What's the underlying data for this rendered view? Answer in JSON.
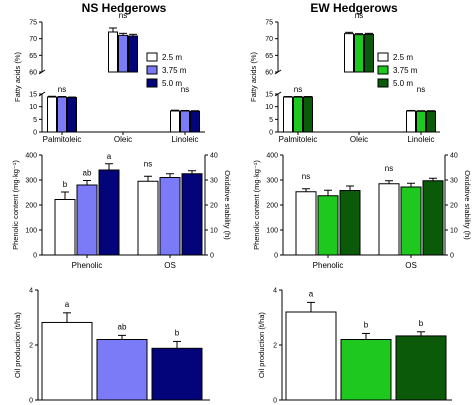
{
  "colors": {
    "white": "#ffffff",
    "ns_light": "#7b7bf7",
    "ns_dark": "#03037a",
    "ew_light": "#1ec81e",
    "ew_dark": "#0a5a0a",
    "axis": "#000000"
  },
  "legend": {
    "labels": [
      "2.5 m",
      "3.75 m",
      "5.0 m"
    ]
  },
  "chart_data": [
    {
      "id": "ns_fatty",
      "type": "bar",
      "title": "NS Hedgerows",
      "ylabel": "Fatty acids (%)",
      "broken_axis": true,
      "yticks_lower": [
        "0",
        "5",
        "10",
        "15"
      ],
      "yticks_upper": [
        "60",
        "65",
        "70",
        "75"
      ],
      "categories": [
        "Palmitoleic",
        "Oleic",
        "Linoleic"
      ],
      "series": [
        {
          "name": "2.5 m",
          "values": [
            13.8,
            72.0,
            8.3
          ],
          "err": [
            0.3,
            1.2,
            0.3
          ]
        },
        {
          "name": "3.75 m",
          "values": [
            13.8,
            71.0,
            8.3
          ],
          "err": [
            0.2,
            0.6,
            0.2
          ]
        },
        {
          "name": "5.0 m",
          "values": [
            13.6,
            70.8,
            8.2
          ],
          "err": [
            0.2,
            0.5,
            0.2
          ]
        }
      ],
      "annotations": [
        "ns",
        "ns",
        "ns"
      ]
    },
    {
      "id": "ew_fatty",
      "type": "bar",
      "title": "EW Hedgerows",
      "ylabel": "Fatty acids (%)",
      "broken_axis": true,
      "yticks_lower": [
        "0",
        "5",
        "10",
        "15"
      ],
      "yticks_upper": [
        "60",
        "65",
        "70",
        "75"
      ],
      "categories": [
        "Palmitoleic",
        "Oleic",
        "Linoleic"
      ],
      "series": [
        {
          "name": "2.5 m",
          "values": [
            13.8,
            71.5,
            8.3
          ],
          "err": [
            0.2,
            0.4,
            0.2
          ]
        },
        {
          "name": "3.75 m",
          "values": [
            13.8,
            71.2,
            8.2
          ],
          "err": [
            0.2,
            0.3,
            0.2
          ]
        },
        {
          "name": "5.0 m",
          "values": [
            13.8,
            71.3,
            8.2
          ],
          "err": [
            0.2,
            0.3,
            0.2
          ]
        }
      ],
      "annotations": [
        "ns",
        "ns",
        "ns"
      ]
    },
    {
      "id": "ns_phenolic",
      "type": "bar",
      "ylabel": "Phenolic content (mg·kg⁻¹)",
      "y2label": "Oxidative stability (h)",
      "ylim": [
        0,
        400
      ],
      "y2lim": [
        0,
        40
      ],
      "yticks": [
        "0",
        "100",
        "200",
        "300",
        "400"
      ],
      "y2ticks": [
        "0",
        "10",
        "20",
        "30",
        "40"
      ],
      "categories": [
        "Phenolic",
        "OS"
      ],
      "series": [
        {
          "name": "2.5 m",
          "values": [
            222,
            29.5
          ],
          "err": [
            30,
            2
          ]
        },
        {
          "name": "3.75 m",
          "values": [
            280,
            31.0
          ],
          "err": [
            18,
            1.5
          ]
        },
        {
          "name": "5.0 m",
          "values": [
            340,
            32.5
          ],
          "err": [
            25,
            1.2
          ]
        }
      ],
      "annotations": [
        [
          "b",
          "ab",
          "a"
        ],
        [
          "ns"
        ]
      ]
    },
    {
      "id": "ew_phenolic",
      "type": "bar",
      "ylabel": "Phenolic content (mg·kg⁻¹)",
      "y2label": "Oxidative stability (h)",
      "ylim": [
        0,
        400
      ],
      "y2lim": [
        0,
        40
      ],
      "yticks": [
        "0",
        "100",
        "200",
        "300",
        "400"
      ],
      "y2ticks": [
        "0",
        "10",
        "20",
        "30",
        "40"
      ],
      "categories": [
        "Phenolic",
        "OS"
      ],
      "series": [
        {
          "name": "2.5 m",
          "values": [
            253,
            28.5
          ],
          "err": [
            12,
            1.2
          ]
        },
        {
          "name": "3.75 m",
          "values": [
            237,
            27.2
          ],
          "err": [
            22,
            1.5
          ]
        },
        {
          "name": "5.0 m",
          "values": [
            258,
            29.7
          ],
          "err": [
            18,
            1.0
          ]
        }
      ],
      "annotations": [
        [
          "ns"
        ],
        [
          "ns"
        ]
      ]
    },
    {
      "id": "ns_oil",
      "type": "bar",
      "ylabel": "Oil production (t/ha)",
      "ylim": [
        0,
        4
      ],
      "yticks": [
        "0",
        "2",
        "4"
      ],
      "categories": [
        "2.5 m",
        "3.75 m",
        "5.0 m"
      ],
      "values": [
        2.82,
        2.2,
        1.88
      ],
      "err": [
        0.35,
        0.15,
        0.25
      ],
      "annotations": [
        "a",
        "ab",
        "b"
      ]
    },
    {
      "id": "ew_oil",
      "type": "bar",
      "ylabel": "Oil production (t/ha)",
      "ylim": [
        0,
        4
      ],
      "yticks": [
        "0",
        "2",
        "4"
      ],
      "categories": [
        "2.5 m",
        "3.75 m",
        "5.0 m"
      ],
      "values": [
        3.2,
        2.2,
        2.33
      ],
      "err": [
        0.35,
        0.22,
        0.15
      ],
      "annotations": [
        "a",
        "b",
        "b"
      ]
    }
  ]
}
